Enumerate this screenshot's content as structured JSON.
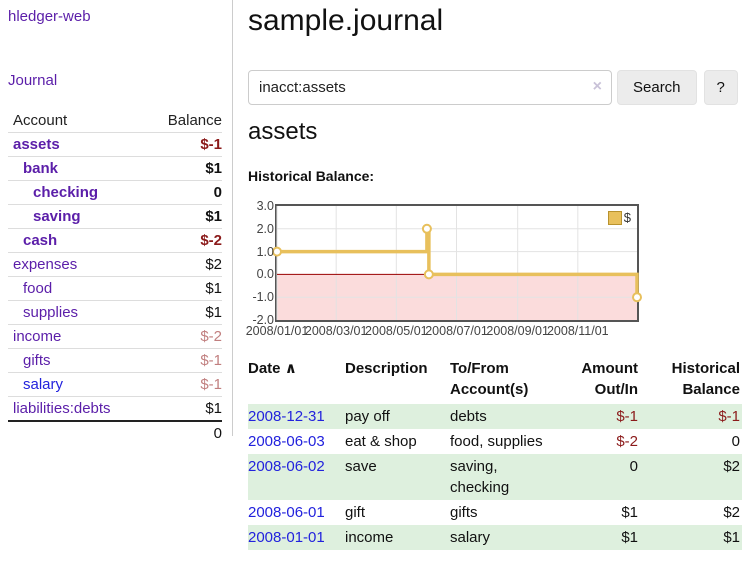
{
  "app": {
    "title": "hledger-web"
  },
  "sidebar": {
    "journal_link": "Journal",
    "header": {
      "account": "Account",
      "balance": "Balance"
    },
    "accounts": [
      {
        "name": "assets",
        "balance": "$-1",
        "indent": 1,
        "bold": true,
        "link": "purple",
        "bal_class": "neg-strong"
      },
      {
        "name": "bank",
        "balance": "$1",
        "indent": 2,
        "bold": true,
        "link": "purple",
        "bal_class": ""
      },
      {
        "name": "checking",
        "balance": "0",
        "indent": 3,
        "bold": true,
        "link": "purple",
        "bal_class": ""
      },
      {
        "name": "saving",
        "balance": "$1",
        "indent": 3,
        "bold": true,
        "link": "purple",
        "bal_class": ""
      },
      {
        "name": "cash",
        "balance": "$-2",
        "indent": 2,
        "bold": true,
        "link": "purple",
        "bal_class": "neg-strong"
      },
      {
        "name": "expenses",
        "balance": "$2",
        "indent": 1,
        "bold": false,
        "link": "purple",
        "bal_class": ""
      },
      {
        "name": "food",
        "balance": "$1",
        "indent": 2,
        "bold": false,
        "link": "purple",
        "bal_class": ""
      },
      {
        "name": "supplies",
        "balance": "$1",
        "indent": 2,
        "bold": false,
        "link": "purple",
        "bal_class": ""
      },
      {
        "name": "income",
        "balance": "$-2",
        "indent": 1,
        "bold": false,
        "link": "purple",
        "bal_class": "neg-soft"
      },
      {
        "name": "gifts",
        "balance": "$-1",
        "indent": 2,
        "bold": false,
        "link": "purple",
        "bal_class": "neg-soft"
      },
      {
        "name": "salary",
        "balance": "$-1",
        "indent": 2,
        "bold": false,
        "link": "blue",
        "bal_class": "neg-soft"
      },
      {
        "name": "liabilities:debts",
        "balance": "$1",
        "indent": 1,
        "bold": false,
        "link": "purple",
        "bal_class": ""
      }
    ],
    "total": "0"
  },
  "main": {
    "title": "sample.journal",
    "search": {
      "value": "inacct:assets",
      "clear_icon": "×",
      "button_label": "Search",
      "help_label": "?"
    },
    "account_heading": "assets",
    "chart_label": "Historical Balance:"
  },
  "chart_data": {
    "type": "line",
    "step": true,
    "title": "Historical Balance",
    "legend_label": "$",
    "legend_position": "top-right",
    "grid": true,
    "ylim": [
      -2,
      3
    ],
    "yticks": [
      "3.0",
      "2.0",
      "1.0",
      "0.0",
      "-1.0",
      "-2.0"
    ],
    "xticks": [
      "2008/01/01",
      "2008/03/01",
      "2008/05/01",
      "2008/07/01",
      "2008/09/01",
      "2008/11/01"
    ],
    "series": [
      {
        "name": "$",
        "points": [
          {
            "date": "2008-01-01",
            "value": 1
          },
          {
            "date": "2008-06-01",
            "value": 2
          },
          {
            "date": "2008-06-03",
            "value": 0
          },
          {
            "date": "2008-12-31",
            "value": -1
          }
        ]
      }
    ],
    "colors": {
      "line": "#e8c05c",
      "marker_fill": "#ffffff",
      "negative_fill": "#fbdcdc",
      "zero_line": "#990000",
      "gridline": "#e3e3e3",
      "border": "#555555"
    }
  },
  "register": {
    "headers": {
      "date": "Date",
      "description": "Description",
      "accounts": "To/From Account(s)",
      "amount": "Amount Out/In",
      "balance": "Historical Balance"
    },
    "sort_icon": "∧",
    "rows": [
      {
        "date": "2008-12-31",
        "description": "pay off",
        "accounts": "debts",
        "amount": "$-1",
        "balance": "$-1",
        "amount_neg": true,
        "balance_neg": true,
        "green": true
      },
      {
        "date": "2008-06-03",
        "description": "eat & shop",
        "accounts": "food, supplies",
        "amount": "$-2",
        "balance": "0",
        "amount_neg": true,
        "balance_neg": false,
        "green": false
      },
      {
        "date": "2008-06-02",
        "description": "save",
        "accounts": "saving, checking",
        "amount": "0",
        "balance": "$2",
        "amount_neg": false,
        "balance_neg": false,
        "green": true
      },
      {
        "date": "2008-06-01",
        "description": "gift",
        "accounts": "gifts",
        "amount": "$1",
        "balance": "$2",
        "amount_neg": false,
        "balance_neg": false,
        "green": false
      },
      {
        "date": "2008-01-01",
        "description": "income",
        "accounts": "salary",
        "amount": "$1",
        "balance": "$1",
        "amount_neg": false,
        "balance_neg": false,
        "green": true
      }
    ]
  }
}
